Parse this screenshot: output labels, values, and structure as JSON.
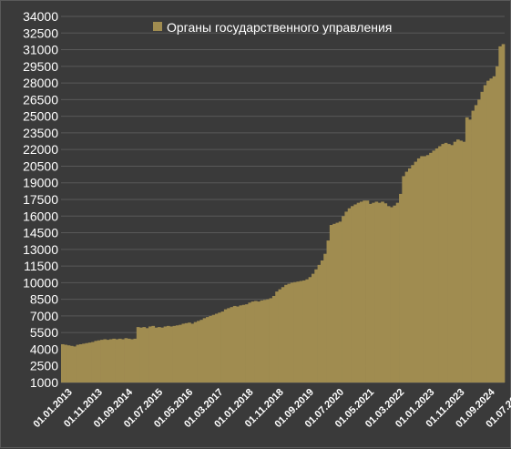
{
  "chart_data": {
    "type": "bar",
    "title": "",
    "xlabel": "",
    "ylabel": "",
    "ylim": [
      1000,
      34000
    ],
    "y_ticks": [
      1000,
      2500,
      4000,
      5500,
      7000,
      8500,
      10000,
      11500,
      13000,
      14500,
      16000,
      17500,
      19000,
      20500,
      22000,
      23500,
      25000,
      26500,
      28000,
      29500,
      31000,
      32500,
      34000
    ],
    "x_ticks": [
      "01.01.2013",
      "01.11.2013",
      "01.09.2014",
      "01.07.2015",
      "01.05.2016",
      "01.03.2017",
      "01.01.2018",
      "01.11.2018",
      "01.09.2019",
      "01.07.2020",
      "01.05.2021",
      "01.03.2022",
      "01.01.2023",
      "01.11.2023",
      "01.09.2024",
      "01.07.2025"
    ],
    "first_period": "01.01.2013",
    "period": "month",
    "grid": true,
    "legend_position": "top-center",
    "colors": {
      "bar": "#a08c50",
      "background": "#3a3a3a",
      "grid": "#595959",
      "text": "#ffffff"
    },
    "series": [
      {
        "name": "Органы государственного управления",
        "values": [
          4450,
          4400,
          4350,
          4300,
          4250,
          4400,
          4450,
          4500,
          4550,
          4600,
          4650,
          4750,
          4800,
          4850,
          4900,
          4850,
          4900,
          4950,
          4900,
          4950,
          4900,
          5000,
          4950,
          4900,
          4950,
          6000,
          5950,
          6000,
          5900,
          6050,
          6100,
          5950,
          6000,
          5950,
          6050,
          6100,
          6050,
          6100,
          6150,
          6200,
          6300,
          6350,
          6400,
          6300,
          6450,
          6550,
          6650,
          6800,
          6900,
          7000,
          7100,
          7200,
          7300,
          7400,
          7600,
          7700,
          7800,
          7900,
          7850,
          7950,
          8000,
          8050,
          8200,
          8300,
          8350,
          8300,
          8400,
          8450,
          8500,
          8600,
          8800,
          9200,
          9400,
          9600,
          9800,
          9900,
          10000,
          10050,
          10100,
          10150,
          10200,
          10300,
          10500,
          10800,
          11200,
          11600,
          12000,
          12600,
          13800,
          15200,
          15300,
          15400,
          15500,
          16000,
          16400,
          16700,
          16900,
          17050,
          17200,
          17300,
          17400,
          17400,
          17100,
          17200,
          17300,
          17200,
          17300,
          17150,
          16900,
          16800,
          16950,
          17200,
          18000,
          19600,
          20000,
          20300,
          20600,
          20900,
          21200,
          21400,
          21400,
          21500,
          21700,
          21900,
          22100,
          22300,
          22500,
          22600,
          22500,
          22400,
          22700,
          22900,
          22800,
          22700,
          24900,
          24700,
          25500,
          26000,
          26500,
          27200,
          27800,
          28200,
          28400,
          28600,
          29500,
          31300,
          31500
        ]
      }
    ]
  }
}
